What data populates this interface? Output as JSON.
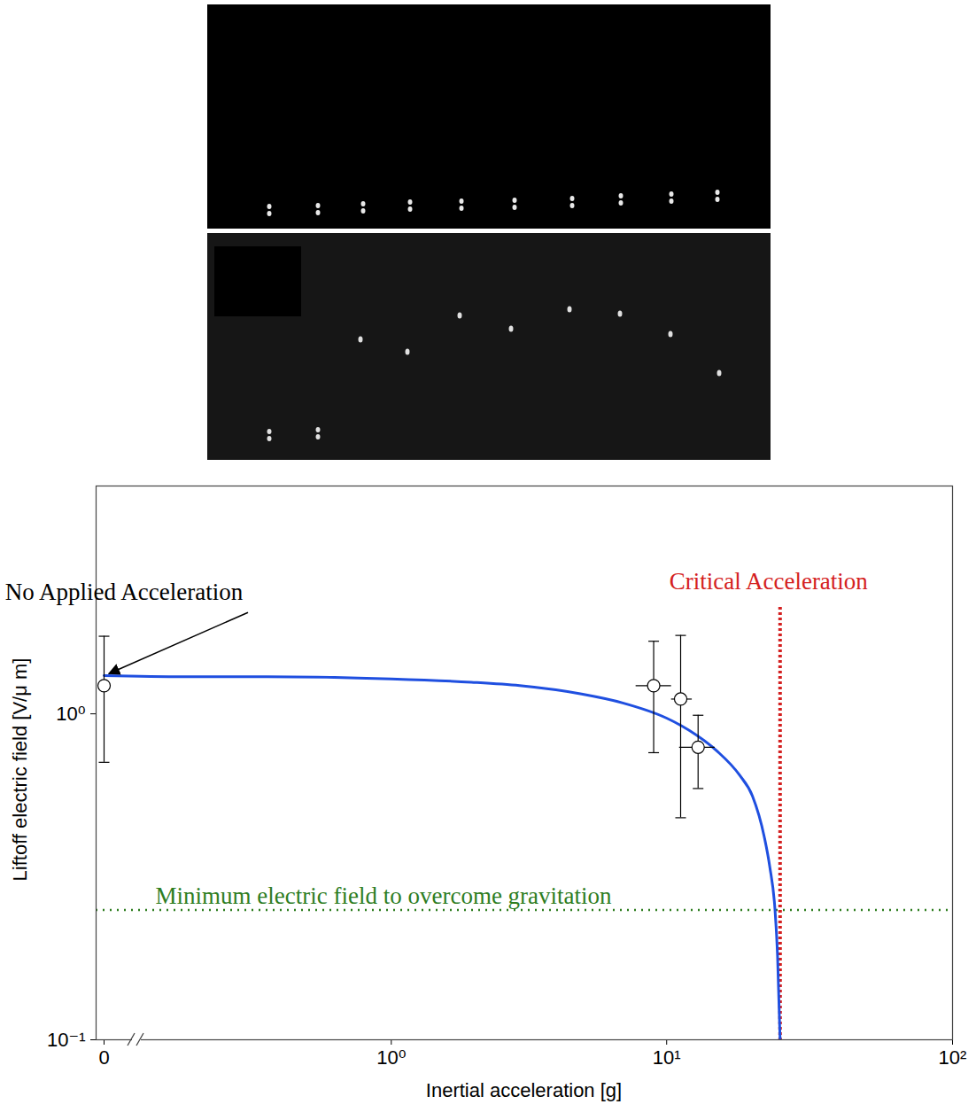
{
  "chart_data": {
    "type": "line",
    "log": true,
    "grid": false,
    "xlabel": "Inertial acceleration [g]",
    "ylabel": "Liftoff electric field [V/μ m]",
    "xlim": [
      0,
      100
    ],
    "xticks": [
      0,
      {
        "value": 1,
        "label": "10⁰"
      },
      {
        "value": 10,
        "label": "10¹"
      },
      {
        "value": 100,
        "label": "10²"
      }
    ],
    "ylim": [
      0.1,
      5
    ],
    "yticks": [
      {
        "value": 0.1,
        "label": "10⁻¹"
      },
      {
        "value": 1,
        "label": "10⁰"
      }
    ],
    "series": [
      {
        "type": "line",
        "color": "#1f4fe0",
        "line_style": "solid",
        "x": [
          0,
          0.1,
          0.3,
          1,
          2,
          3,
          5,
          7,
          10,
          12,
          15,
          18,
          20,
          22,
          23,
          24,
          24.5,
          25
        ],
        "values": [
          1.31,
          1.3,
          1.3,
          1.28,
          1.25,
          1.22,
          1.15,
          1.08,
          0.97,
          0.89,
          0.77,
          0.65,
          0.56,
          0.42,
          0.34,
          0.25,
          0.18,
          0.1
        ]
      },
      {
        "type": "scatter",
        "color": "#000000",
        "marker": "open_circle",
        "x": [
          0,
          9.0,
          11.2,
          12.9
        ],
        "values": [
          1.22,
          1.22,
          1.11,
          0.79
        ],
        "y_low": [
          0.71,
          0.76,
          0.48,
          0.59
        ],
        "y_high": [
          1.73,
          1.67,
          1.74,
          0.99
        ],
        "x_low": [
          null,
          7.8,
          10.4,
          11.1
        ],
        "x_high": [
          null,
          10.4,
          12.3,
          14.8
        ]
      }
    ],
    "reference_lines": [
      {
        "axis": "y",
        "value": 0.25,
        "label": "Minimum electric field to overcome gravitation",
        "color": "#2e7d1f",
        "line_style": "dotted"
      },
      {
        "axis": "x",
        "value": 25,
        "label": "Critical Acceleration",
        "color": "#d42020",
        "line_style": "dotted"
      }
    ],
    "annotations": [
      {
        "text": "No Applied Acceleration",
        "x": 0,
        "y": 1.3
      }
    ]
  }
}
